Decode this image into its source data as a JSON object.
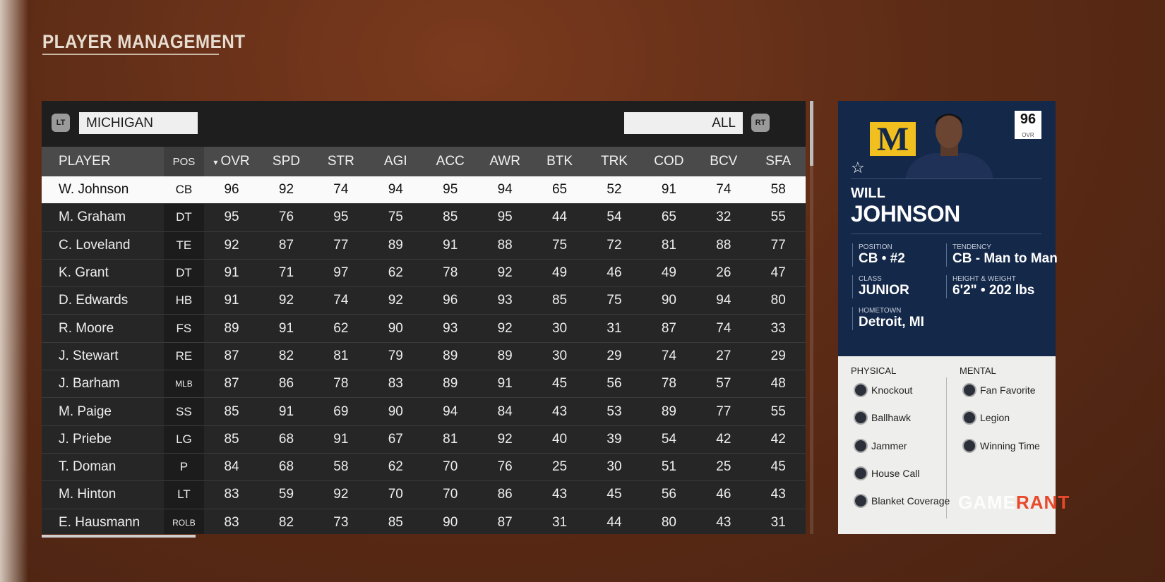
{
  "title": "PLAYER MANAGEMENT",
  "toolbar": {
    "lt": "LT",
    "rt": "RT",
    "team": "MICHIGAN",
    "filter": "ALL"
  },
  "columns": [
    "PLAYER",
    "POS",
    "OVR",
    "SPD",
    "STR",
    "AGI",
    "ACC",
    "AWR",
    "BTK",
    "TRK",
    "COD",
    "BCV",
    "SFA"
  ],
  "sort_indicator": "▾",
  "rows": [
    {
      "name": "W. Johnson",
      "pos": "CB",
      "stats": [
        96,
        92,
        74,
        94,
        95,
        94,
        65,
        52,
        91,
        74,
        58
      ]
    },
    {
      "name": "M. Graham",
      "pos": "DT",
      "stats": [
        95,
        76,
        95,
        75,
        85,
        95,
        44,
        54,
        65,
        32,
        55
      ]
    },
    {
      "name": "C. Loveland",
      "pos": "TE",
      "stats": [
        92,
        87,
        77,
        89,
        91,
        88,
        75,
        72,
        81,
        88,
        77
      ]
    },
    {
      "name": "K. Grant",
      "pos": "DT",
      "stats": [
        91,
        71,
        97,
        62,
        78,
        92,
        49,
        46,
        49,
        26,
        47
      ]
    },
    {
      "name": "D. Edwards",
      "pos": "HB",
      "stats": [
        91,
        92,
        74,
        92,
        96,
        93,
        85,
        75,
        90,
        94,
        80
      ]
    },
    {
      "name": "R. Moore",
      "pos": "FS",
      "stats": [
        89,
        91,
        62,
        90,
        93,
        92,
        30,
        31,
        87,
        74,
        33
      ]
    },
    {
      "name": "J. Stewart",
      "pos": "RE",
      "stats": [
        87,
        82,
        81,
        79,
        89,
        89,
        30,
        29,
        74,
        27,
        29
      ]
    },
    {
      "name": "J. Barham",
      "pos": "MLB",
      "stats": [
        87,
        86,
        78,
        83,
        89,
        91,
        45,
        56,
        78,
        57,
        48
      ]
    },
    {
      "name": "M. Paige",
      "pos": "SS",
      "stats": [
        85,
        91,
        69,
        90,
        94,
        84,
        43,
        53,
        89,
        77,
        55
      ]
    },
    {
      "name": "J. Priebe",
      "pos": "LG",
      "stats": [
        85,
        68,
        91,
        67,
        81,
        92,
        40,
        39,
        54,
        42,
        42
      ]
    },
    {
      "name": "T. Doman",
      "pos": "P",
      "stats": [
        84,
        68,
        58,
        62,
        70,
        76,
        25,
        30,
        51,
        25,
        45
      ]
    },
    {
      "name": "M. Hinton",
      "pos": "LT",
      "stats": [
        83,
        59,
        92,
        70,
        70,
        86,
        43,
        45,
        56,
        46,
        43
      ]
    },
    {
      "name": "E. Hausmann",
      "pos": "ROLB",
      "stats": [
        83,
        82,
        73,
        85,
        90,
        87,
        31,
        44,
        80,
        43,
        31
      ]
    }
  ],
  "selected_row": 0,
  "card": {
    "logo": "M",
    "ovr": "96",
    "ovr_label": "OVR",
    "star": "☆",
    "first_name": "WILL",
    "last_name": "JOHNSON",
    "position_label": "POSITION",
    "position": "CB • #2",
    "tendency_label": "TENDENCY",
    "tendency": "CB - Man to Man",
    "class_label": "CLASS",
    "class": "JUNIOR",
    "hw_label": "HEIGHT & WEIGHT",
    "hw": "6'2\" • 202 lbs",
    "hometown_label": "HOMETOWN",
    "hometown": "Detroit, MI",
    "physical_label": "PHYSICAL",
    "mental_label": "MENTAL",
    "physical": [
      "Knockout",
      "Ballhawk",
      "Jammer",
      "House Call",
      "Blanket Coverage"
    ],
    "mental": [
      "Fan Favorite",
      "Legion",
      "Winning Time"
    ]
  },
  "watermark": {
    "a": "GAME",
    "b": "RANT"
  },
  "colors": {
    "card_blue": "#142849",
    "michigan_maize": "#f2c01e",
    "selected_row": "#fafafa"
  }
}
